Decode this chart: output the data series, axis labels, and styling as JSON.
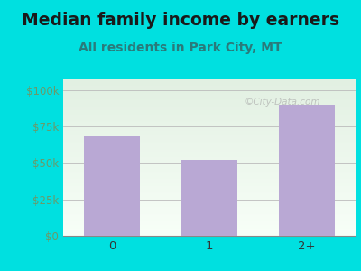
{
  "title": "Median family income by earners",
  "subtitle": "All residents in Park City, MT",
  "categories": [
    "0",
    "1",
    "2+"
  ],
  "values": [
    68000,
    52000,
    90000
  ],
  "bar_color": "#b9a8d4",
  "background_color": "#00e0e0",
  "plot_bg_top": "#e2f0e2",
  "plot_bg_bottom": "#f8fff8",
  "title_color": "#1a1a1a",
  "subtitle_color": "#2a7a7a",
  "ytick_color": "#6a9a6a",
  "xtick_color": "#333333",
  "ytick_labels": [
    "$0",
    "$25k",
    "$50k",
    "$75k",
    "$100k"
  ],
  "ytick_values": [
    0,
    25000,
    50000,
    75000,
    100000
  ],
  "ylim": [
    0,
    108000
  ],
  "watermark": "©City-Data.com",
  "title_fontsize": 13.5,
  "subtitle_fontsize": 10,
  "bar_width": 0.58
}
